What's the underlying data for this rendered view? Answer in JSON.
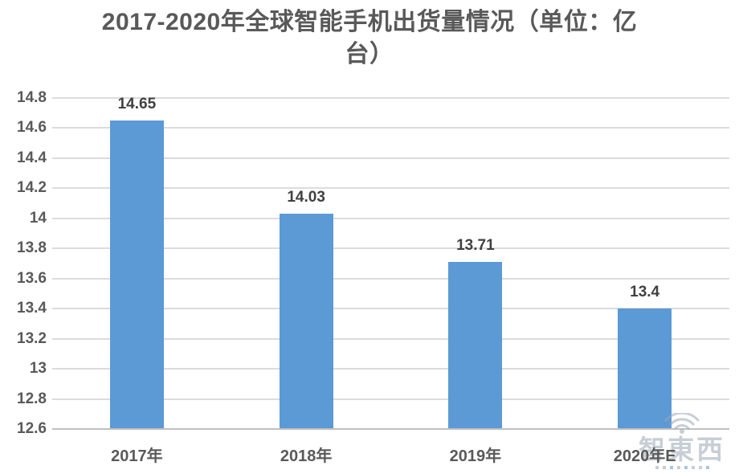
{
  "header": {
    "title_line1": "2017-2020年全球智能手机出货量情况（单位：亿",
    "title_line2": "台）"
  },
  "chart_data": {
    "type": "bar",
    "title": "2017-2020年全球智能手机出货量情况（单位：亿台）",
    "categories": [
      "2017年",
      "2018年",
      "2019年",
      "2020年E"
    ],
    "values": [
      14.65,
      14.03,
      13.71,
      13.4
    ],
    "value_labels": [
      "14.65",
      "14.03",
      "13.71",
      "13.4"
    ],
    "xlabel": "",
    "ylabel": "",
    "ylim": [
      12.6,
      14.8
    ],
    "ytick_step": 0.2,
    "ytick_labels": [
      "12.6",
      "12.8",
      "13",
      "13.2",
      "13.4",
      "13.6",
      "13.8",
      "14",
      "14.2",
      "14.4",
      "14.6",
      "14.8"
    ],
    "grid": true,
    "legend_position": "none",
    "colors": {
      "bar": "#5B9AD5",
      "gridline": "#DCDCDC",
      "axis_line": "#C0C0C0",
      "tick_label": "#595959",
      "value_label": "#404040",
      "title": "#595959"
    }
  },
  "watermark": {
    "brand": "智東西",
    "icon": "wifi-signal-icon",
    "color": "#9AA7B5"
  }
}
